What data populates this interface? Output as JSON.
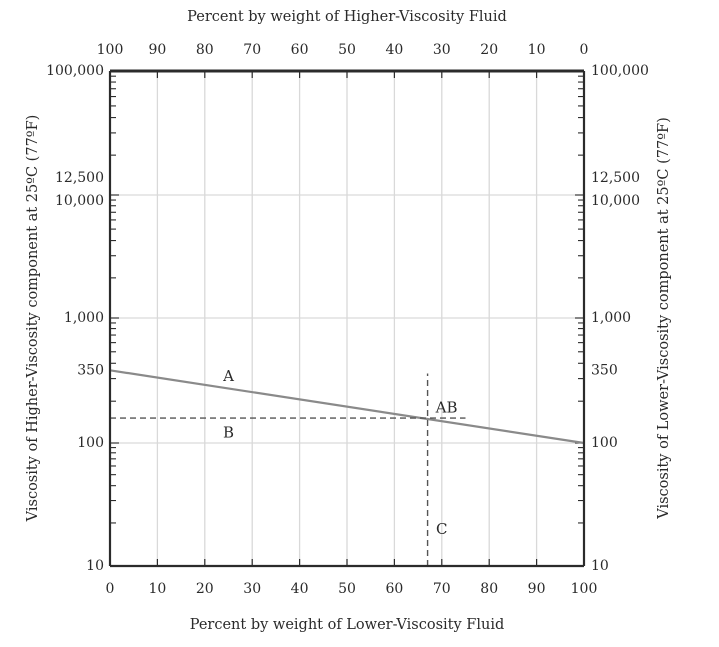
{
  "chart_data": {
    "type": "line",
    "title": "",
    "top_axis_title": "Percent by weight of Higher-Viscosity Fluid",
    "bottom_axis_title": "Percent by weight of Lower-Viscosity Fluid",
    "left_axis_title": "Viscosity of Higher-Viscosity component at 25ºC (77ºF)",
    "right_axis_title": "Viscosity of Lower-Viscosity component at 25ºC (77ºF)",
    "xlim": [
      0,
      100
    ],
    "x_ticks": [
      0,
      10,
      20,
      30,
      40,
      50,
      60,
      70,
      80,
      90,
      100
    ],
    "x_tick_labels_bottom": [
      "0",
      "10",
      "20",
      "30",
      "40",
      "50",
      "60",
      "70",
      "80",
      "90",
      "100"
    ],
    "x_tick_labels_top": [
      "100",
      "90",
      "80",
      "70",
      "60",
      "50",
      "40",
      "30",
      "20",
      "10",
      "0"
    ],
    "y_scale": "log-log (viscosity blending)",
    "ylim": [
      10,
      100000
    ],
    "y_tick_values": [
      10,
      100,
      350,
      1000,
      10000,
      12500,
      100000
    ],
    "y_tick_labels_left": [
      "10",
      "100",
      "350",
      "1,000",
      "10,000",
      "12,500",
      "100,000"
    ],
    "y_tick_labels_right": [
      "10",
      "100",
      "350",
      "1,000",
      "10,000",
      "12,500",
      "100,000"
    ],
    "series": [
      {
        "name": "A",
        "style": "solid",
        "color": "#8a8a8a",
        "points": [
          {
            "x": 0,
            "y": 350
          },
          {
            "x": 100,
            "y": 100
          }
        ]
      },
      {
        "name": "B",
        "style": "dashed",
        "color": "#555555",
        "points": [
          {
            "x": 0,
            "y": 150
          },
          {
            "x": 75,
            "y": 150
          }
        ]
      },
      {
        "name": "C",
        "style": "dashed",
        "color": "#555555",
        "points": [
          {
            "x": 67,
            "y": 10
          },
          {
            "x": 67,
            "y": 330
          }
        ]
      }
    ],
    "annotations": [
      {
        "text": "A",
        "x": 25,
        "y": 315
      },
      {
        "text": "B",
        "x": 25,
        "y": 118
      },
      {
        "text": "AB",
        "x": 71,
        "y": 180
      },
      {
        "text": "C",
        "x": 70,
        "y": 18
      }
    ],
    "grid": true,
    "colors": {
      "grid": "#d9d9d9",
      "axis": "#2b2b2b",
      "line_a": "#8a8a8a",
      "dashed": "#555555"
    }
  }
}
